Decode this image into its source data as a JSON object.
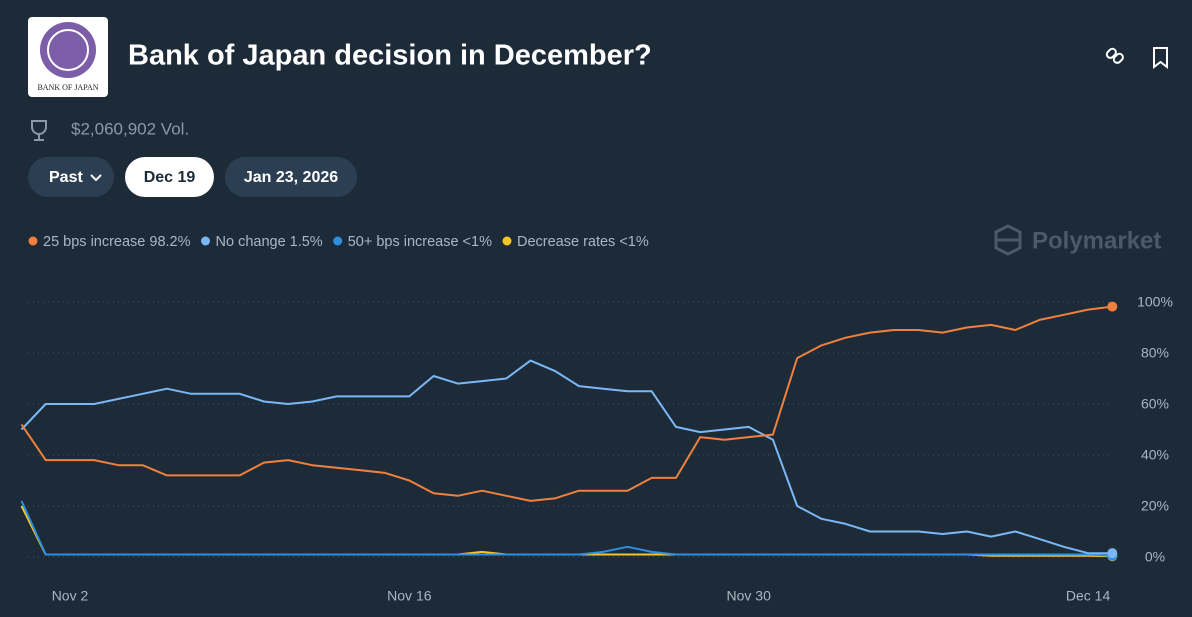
{
  "header": {
    "logo_text": "BANK OF JAPAN",
    "title": "Bank of Japan decision in December?",
    "volume": "$2,060,902 Vol.",
    "buttons": [
      "Past",
      "Dec 19",
      "Jan 23, 2026"
    ],
    "watermark": "Polymarket"
  },
  "chart_data": {
    "type": "line",
    "categories": [
      null,
      null,
      "Nov 2",
      null,
      null,
      null,
      null,
      null,
      null,
      null,
      null,
      null,
      null,
      null,
      null,
      null,
      "Nov 16",
      null,
      null,
      null,
      null,
      null,
      null,
      null,
      null,
      null,
      null,
      null,
      null,
      null,
      "Nov 30",
      null,
      null,
      null,
      null,
      null,
      null,
      null,
      null,
      null,
      null,
      null,
      null,
      null,
      "Dec 14",
      null
    ],
    "series": [
      {
        "name": "25 bps increase",
        "legend_value": "98.2%",
        "color": "#f0803c",
        "values": [
          52,
          38,
          38,
          38,
          36,
          36,
          32,
          32,
          32,
          32,
          37,
          38,
          36,
          35,
          34,
          33,
          30,
          25,
          24,
          26,
          24,
          22,
          23,
          26,
          26,
          26,
          31,
          31,
          47,
          46,
          47,
          48,
          78,
          83,
          86,
          88,
          89,
          89,
          88,
          90,
          91,
          89,
          93,
          95,
          97,
          98.2
        ]
      },
      {
        "name": "No change",
        "legend_value": "1.5%",
        "color": "#7ab8f5",
        "values": [
          50,
          60,
          60,
          60,
          62,
          64,
          66,
          64,
          64,
          64,
          61,
          60,
          61,
          63,
          63,
          63,
          63,
          71,
          68,
          69,
          70,
          77,
          73,
          67,
          66,
          65,
          65,
          51,
          49,
          50,
          51,
          46,
          20,
          15,
          13,
          10,
          10,
          10,
          9,
          10,
          8,
          10,
          7,
          4,
          1.5,
          1.5
        ]
      },
      {
        "name": "50+ bps increase",
        "legend_value": "<1%",
        "color": "#2e8fe0",
        "values": [
          22,
          1,
          1,
          1,
          1,
          1,
          1,
          1,
          1,
          1,
          1,
          1,
          1,
          1,
          1,
          1,
          1,
          1,
          1,
          1,
          1,
          1,
          1,
          1,
          2,
          4,
          2,
          1,
          1,
          1,
          1,
          1,
          1,
          1,
          1,
          1,
          1,
          1,
          1,
          1,
          1,
          1,
          1,
          1,
          1,
          0.5
        ]
      },
      {
        "name": "Decrease rates",
        "legend_value": "<1%",
        "color": "#f5c32c",
        "values": [
          20,
          1,
          1,
          1,
          1,
          1,
          1,
          1,
          1,
          1,
          1,
          1,
          1,
          1,
          1,
          1,
          1,
          1,
          1,
          2,
          1,
          1,
          1,
          1,
          1,
          1,
          1,
          1,
          1,
          1,
          1,
          1,
          1,
          1,
          1,
          1,
          1,
          1,
          1,
          1,
          0.5,
          0.5,
          0.5,
          0.5,
          0.5,
          0.3
        ]
      }
    ],
    "ylim": [
      0,
      100
    ],
    "yticks": [
      {
        "value": 0,
        "label": "0%"
      },
      {
        "value": 20,
        "label": "20%"
      },
      {
        "value": 40,
        "label": "40%"
      },
      {
        "value": 60,
        "label": "60%"
      },
      {
        "value": 80,
        "label": "80%"
      },
      {
        "value": 100,
        "label": "100%"
      }
    ],
    "grid": true
  }
}
